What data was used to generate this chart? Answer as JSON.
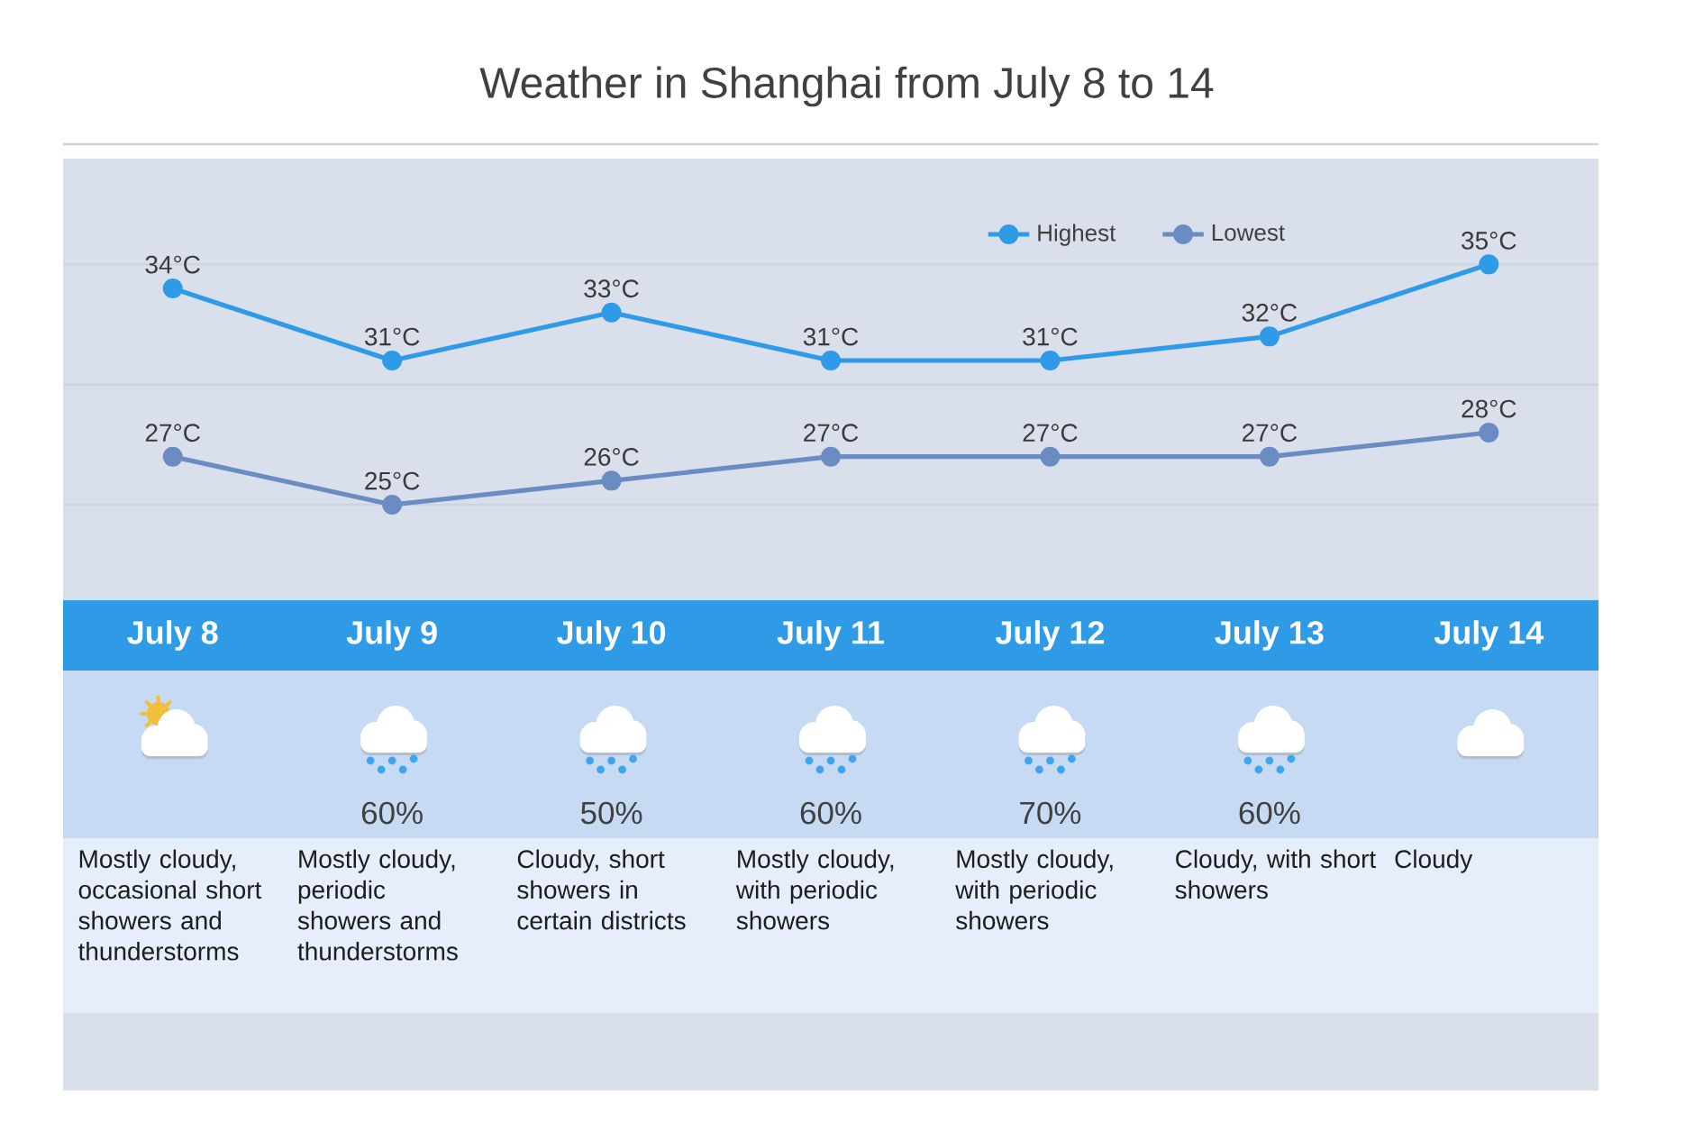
{
  "chart_data": {
    "type": "line",
    "title": "Weather in Shanghai from July 8 to 14",
    "categories": [
      "July 8",
      "July 9",
      "July 10",
      "July 11",
      "July 12",
      "July 13",
      "July 14"
    ],
    "series": [
      {
        "name": "Highest",
        "color": "#2f9ae8",
        "values": [
          34,
          31,
          33,
          31,
          31,
          32,
          35
        ],
        "value_labels": [
          "34°C",
          "31°C",
          "33°C",
          "31°C",
          "31°C",
          "32°C",
          "35°C"
        ]
      },
      {
        "name": "Lowest",
        "color": "#6a8cc2",
        "values": [
          27,
          25,
          26,
          27,
          27,
          27,
          28
        ],
        "value_labels": [
          "27°C",
          "25°C",
          "26°C",
          "27°C",
          "27°C",
          "27°C",
          "28°C"
        ]
      }
    ],
    "ylim": [
      25,
      40
    ],
    "yticks": [
      {
        "value": 25,
        "label": null
      },
      {
        "value": 30,
        "label": null
      },
      {
        "value": 35,
        "label": null
      },
      {
        "value": 40,
        "label": null
      }
    ],
    "grid": "y",
    "tick_labels": "x",
    "legend": "top right",
    "marker": "circle",
    "line_style": "solid",
    "annotations": [
      "60%",
      "50%",
      "60%",
      "70%",
      "60%",
      "Mostly cloudy, occasional short showers and thunderstorms",
      "Mostly cloudy, periodic showers and thunderstorms",
      "Cloudy, short showers in certain districts",
      "Mostly cloudy, with periodic showers",
      "Mostly cloudy, with periodic showers",
      "Cloudy, with short showers",
      "Cloudy"
    ]
  }
}
